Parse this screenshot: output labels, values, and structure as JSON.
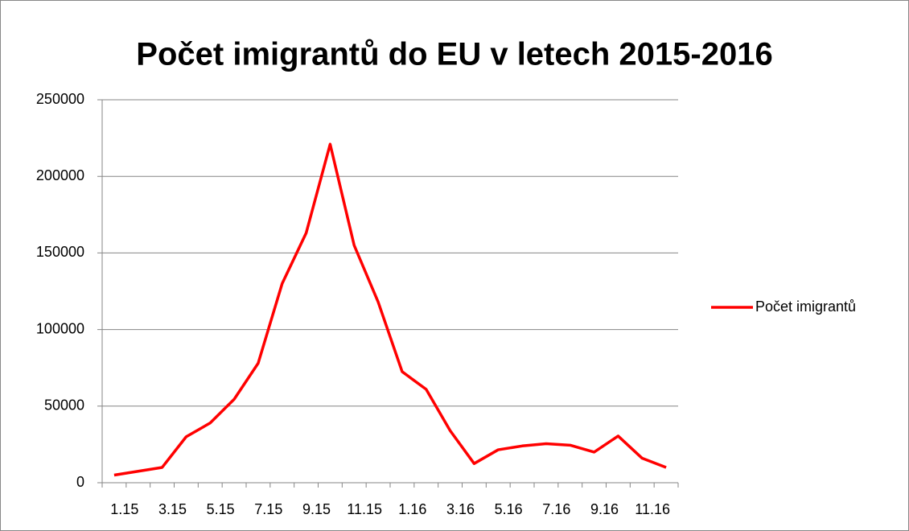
{
  "chart_data": {
    "type": "line",
    "title": "Počet imigrantů do EU v letech 2015-2016",
    "categories": [
      "1.15",
      null,
      "3.15",
      null,
      "5.15",
      null,
      "7.15",
      null,
      "9.15",
      null,
      "11.15",
      null,
      "1.16",
      null,
      "3.16",
      null,
      "5.16",
      null,
      "7.16",
      null,
      "9.16",
      null,
      "11.16",
      null
    ],
    "series": [
      {
        "name": "Počet imigrantů",
        "color": "#ff0000",
        "values": [
          5000,
          7500,
          10000,
          30000,
          39000,
          54500,
          78000,
          130000,
          163000,
          221000,
          155000,
          118000,
          72500,
          61000,
          34000,
          12500,
          21500,
          24000,
          25500,
          24500,
          20000,
          30500,
          16000,
          10000
        ]
      }
    ],
    "ylim": [
      0,
      250000
    ],
    "yticks": [
      0,
      50000,
      100000,
      150000,
      200000,
      250000
    ],
    "grid": true,
    "legend": "right"
  }
}
